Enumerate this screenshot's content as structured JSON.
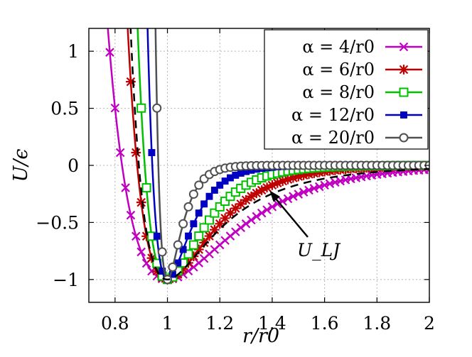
{
  "chart_data": {
    "type": "line",
    "title": "",
    "xlabel": "r/r0",
    "ylabel": "U/ϵ",
    "xlim": [
      0.7,
      2.0
    ],
    "ylim": [
      -1.2,
      1.2
    ],
    "grid": true,
    "legend_position": "top-right",
    "x_ticks": [
      {
        "value": 0.8,
        "label": "0.8"
      },
      {
        "value": 1.0,
        "label": "1"
      },
      {
        "value": 1.2,
        "label": "1.2"
      },
      {
        "value": 1.4,
        "label": "1.4"
      },
      {
        "value": 1.6,
        "label": "1.6"
      },
      {
        "value": 1.8,
        "label": "1.8"
      },
      {
        "value": 2.0,
        "label": "2"
      }
    ],
    "y_ticks": [
      {
        "value": 1.0,
        "label": "1"
      },
      {
        "value": 0.5,
        "label": "0.5"
      },
      {
        "value": 0.0,
        "label": "0"
      },
      {
        "value": -0.5,
        "label": "−0.5"
      },
      {
        "value": -1.0,
        "label": "−1"
      }
    ],
    "series": [
      {
        "name": "α = 4/r0",
        "alpha": 4,
        "color": "#c000c0",
        "marker": "x"
      },
      {
        "name": "α = 6/r0",
        "alpha": 6,
        "color": "#c00000",
        "marker": "star"
      },
      {
        "name": "α = 8/r0",
        "alpha": 8,
        "color": "#00c000",
        "marker": "square-open"
      },
      {
        "name": "α = 12/r0",
        "alpha": 12,
        "color": "#0000c0",
        "marker": "square-filled"
      },
      {
        "name": "α = 20/r0",
        "alpha": 20,
        "color": "#505050",
        "marker": "circle-open"
      },
      {
        "name": "",
        "function": "lennard-jones",
        "color": "#000000",
        "style": "dashed"
      }
    ],
    "annotation": {
      "text": "U_LJ",
      "points_to": [
        1.39,
        -0.22
      ]
    }
  }
}
